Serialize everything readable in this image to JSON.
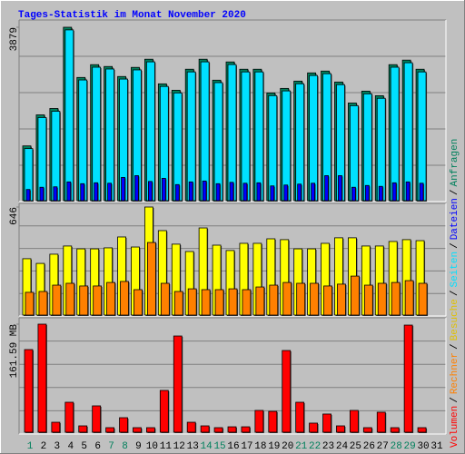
{
  "chart_data": [
    {
      "type": "bar",
      "title": "Tages-Statistik im Monat November 2020",
      "ylim": [
        0,
        3879
      ],
      "yticks": [
        3879
      ],
      "series": [
        {
          "name": "Anfragen",
          "color": "#00805c",
          "values": [
            1225,
            1919,
            2062,
            3879,
            2756,
            3042,
            3001,
            2777,
            2981,
            3164,
            2613,
            2470,
            2940,
            3164,
            2695,
            3103,
            2940,
            2940,
            2409,
            2511,
            2674,
            2858,
            2899,
            2654,
            2184,
            2450,
            2348,
            3042,
            3144,
            2940,
            null
          ]
        },
        {
          "name": "Seiten",
          "color": "#00e0ff",
          "values": [
            1165,
            1860,
            2000,
            3820,
            2700,
            2985,
            2945,
            2720,
            2925,
            3105,
            2555,
            2410,
            2880,
            3105,
            2640,
            3045,
            2880,
            2880,
            2350,
            2455,
            2615,
            2800,
            2840,
            2595,
            2125,
            2390,
            2290,
            2985,
            3085,
            2880,
            null
          ]
        },
        {
          "name": "Dateien",
          "color": "#0000ff",
          "values": [
            250,
            300,
            310,
            420,
            380,
            400,
            390,
            520,
            560,
            430,
            500,
            360,
            420,
            440,
            380,
            410,
            390,
            400,
            330,
            350,
            370,
            390,
            560,
            560,
            300,
            340,
            320,
            400,
            420,
            390,
            null
          ]
        }
      ]
    },
    {
      "type": "bar",
      "ylim": [
        0,
        646
      ],
      "yticks": [
        646
      ],
      "series": [
        {
          "name": "Besuche",
          "color": "#ffff00",
          "values": [
            337,
            309,
            364,
            413,
            396,
            396,
            402,
            467,
            407,
            646,
            505,
            424,
            380,
            521,
            418,
            386,
            429,
            429,
            456,
            451,
            396,
            396,
            429,
            462,
            462,
            413,
            413,
            440,
            451,
            445,
            null
          ]
        },
        {
          "name": "Rechner",
          "color": "#ff8000",
          "values": [
            136,
            141,
            179,
            190,
            174,
            174,
            195,
            201,
            152,
            434,
            190,
            141,
            157,
            152,
            152,
            157,
            152,
            168,
            179,
            195,
            190,
            190,
            174,
            185,
            233,
            179,
            190,
            195,
            206,
            190,
            null
          ]
        }
      ]
    },
    {
      "type": "bar",
      "ylim": [
        0,
        161.59
      ],
      "yticks": [
        {
          "value": 161.59,
          "label": "161.59 MB"
        }
      ],
      "categories": [
        "1",
        "2",
        "3",
        "4",
        "5",
        "6",
        "7",
        "8",
        "9",
        "10",
        "11",
        "12",
        "13",
        "14",
        "15",
        "16",
        "17",
        "18",
        "19",
        "20",
        "21",
        "22",
        "23",
        "24",
        "25",
        "26",
        "27",
        "28",
        "29",
        "30",
        "31"
      ],
      "highlight_indices": [
        0,
        6,
        7,
        13,
        14,
        20,
        21,
        27,
        28
      ],
      "highlight_color": "#00805c",
      "series": [
        {
          "name": "Volumen",
          "color": "#ff0000",
          "values": [
            123.6,
            161.59,
            14.9,
            44.8,
            9.5,
            39.4,
            6.8,
            21.7,
            6.8,
            6.8,
            62.5,
            143.9,
            14.9,
            9.5,
            6.8,
            8.1,
            8.1,
            32.6,
            31.2,
            122.2,
            44.8,
            13.6,
            27.2,
            9.5,
            32.6,
            6.8,
            29.9,
            6.8,
            160.2,
            6.8,
            null
          ]
        }
      ],
      "legend_separator": "/"
    }
  ]
}
